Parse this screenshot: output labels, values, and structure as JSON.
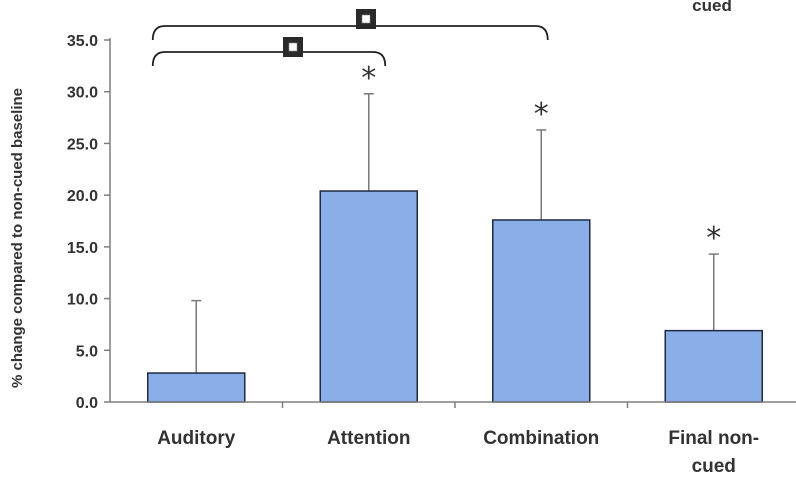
{
  "chart_data": {
    "type": "bar",
    "title": "",
    "xlabel": "",
    "ylabel": "% change compared to non-cued baseline",
    "ylim": [
      0,
      35
    ],
    "yticks": [
      "0.0",
      "5.0",
      "10.0",
      "15.0",
      "20.0",
      "25.0",
      "30.0",
      "35.0"
    ],
    "categories": [
      [
        "Auditory"
      ],
      [
        "Attention"
      ],
      [
        "Combination"
      ],
      [
        "Final non-",
        "cued"
      ]
    ],
    "values": [
      2.8,
      20.4,
      17.6,
      6.9
    ],
    "error_upper": [
      9.8,
      29.8,
      26.3,
      14.3
    ],
    "significance": [
      "",
      "*",
      "*",
      "*"
    ],
    "comparison_brackets": [
      {
        "from": "Auditory",
        "to": "Attention",
        "marker": "open-square"
      },
      {
        "from": "Auditory",
        "to": "Combination",
        "marker": "open-square"
      }
    ],
    "corner_text": "cued",
    "grid": false,
    "bar_color": "#8aaee8"
  }
}
